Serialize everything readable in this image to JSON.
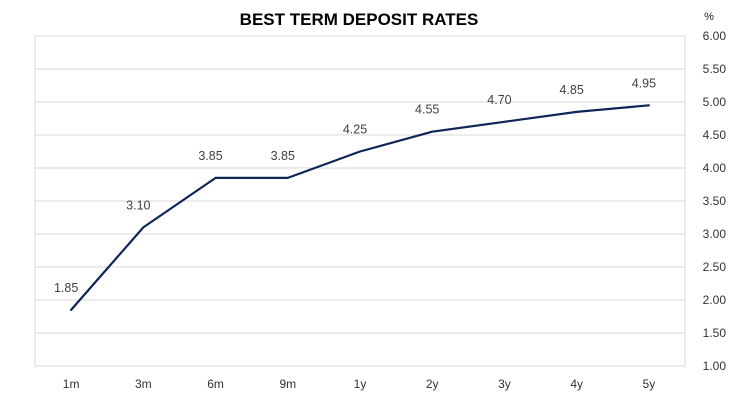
{
  "chart_data": {
    "type": "line",
    "title": "BEST TERM DEPOSIT RATES",
    "unit_label": "%",
    "categories": [
      "1m",
      "3m",
      "6m",
      "9m",
      "1y",
      "2y",
      "3y",
      "4y",
      "5y"
    ],
    "series": [
      {
        "values": [
          1.85,
          3.1,
          3.85,
          3.85,
          4.25,
          4.55,
          4.7,
          4.85,
          4.95
        ],
        "data_labels": [
          "1.85",
          "3.10",
          "3.85",
          "3.85",
          "4.25",
          "4.55",
          "4.70",
          "4.85",
          "4.95"
        ],
        "color": "#0f2557"
      }
    ],
    "yaxis": {
      "position": "right",
      "ylim": [
        1.0,
        6.0
      ],
      "ticks": [
        "1.00",
        "1.50",
        "2.00",
        "2.50",
        "3.00",
        "3.50",
        "4.00",
        "4.50",
        "5.00",
        "5.50",
        "6.00"
      ]
    },
    "grid": "horizontal",
    "legend": "none",
    "xlabel": "",
    "ylabel": ""
  }
}
